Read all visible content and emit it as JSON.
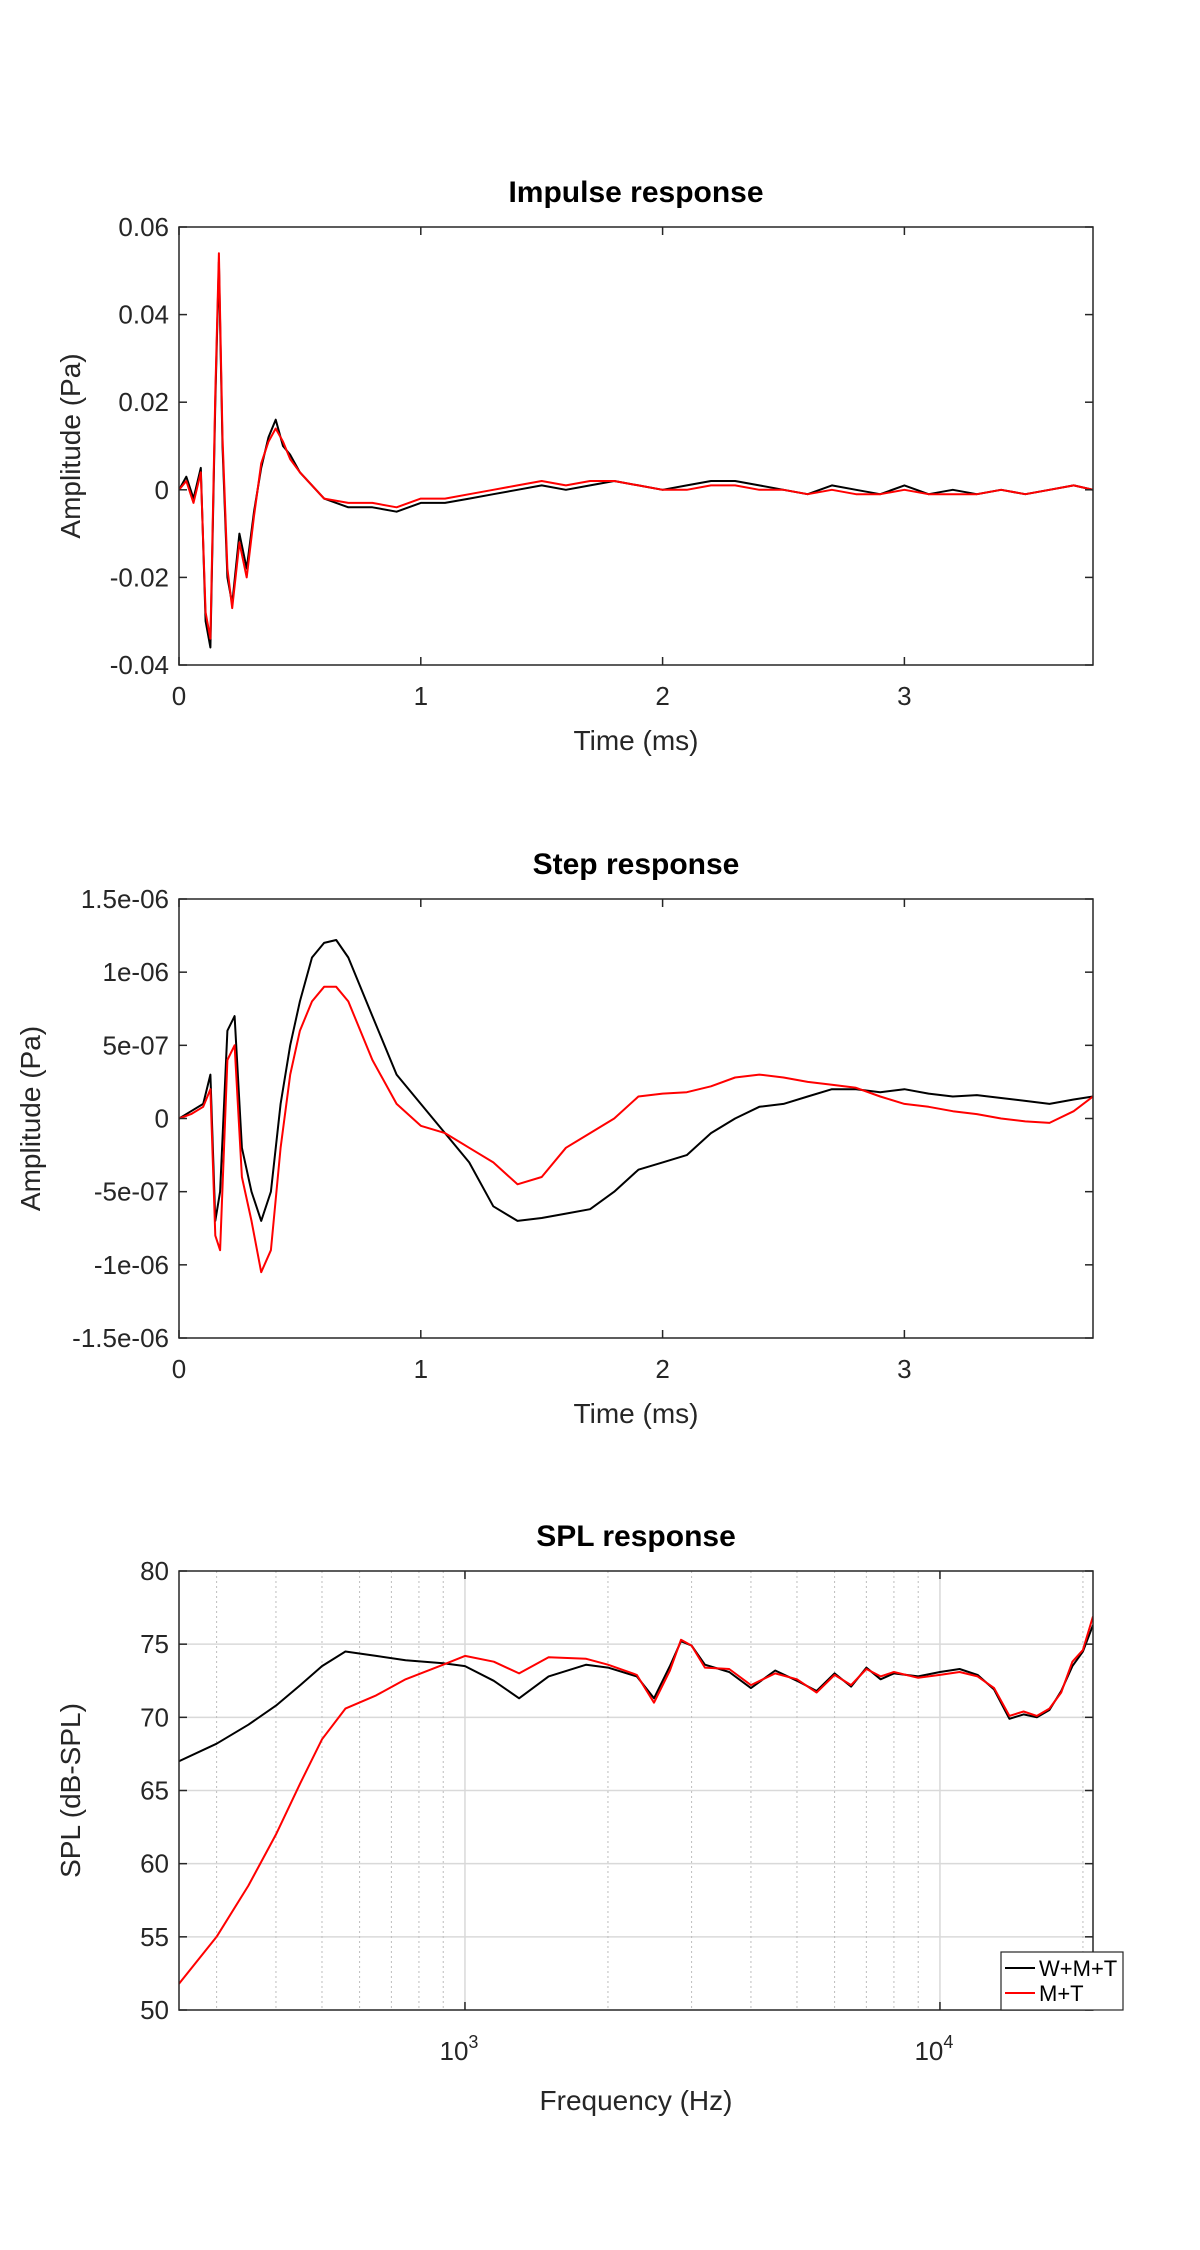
{
  "chart_data": [
    {
      "type": "line",
      "title": "Impulse response",
      "xlabel": "Time (ms)",
      "ylabel": "Amplitude (Pa)",
      "xlim": [
        0,
        3.78
      ],
      "ylim": [
        -0.04,
        0.06
      ],
      "xticks": [
        0,
        1,
        2,
        3
      ],
      "xtick_labels": [
        "0",
        "1",
        "2",
        "3"
      ],
      "yticks": [
        -0.04,
        -0.02,
        0,
        0.02,
        0.04,
        0.06
      ],
      "ytick_labels": [
        "-0.04",
        "-0.02",
        "0",
        "0.02",
        "0.04",
        "0.06"
      ],
      "grid": false,
      "series": [
        {
          "color": "#000000",
          "x": [
            0,
            0.03,
            0.06,
            0.09,
            0.11,
            0.13,
            0.15,
            0.165,
            0.18,
            0.2,
            0.22,
            0.25,
            0.28,
            0.31,
            0.34,
            0.37,
            0.4,
            0.43,
            0.46,
            0.5,
            0.55,
            0.6,
            0.7,
            0.8,
            0.9,
            1.0,
            1.1,
            1.2,
            1.3,
            1.4,
            1.5,
            1.6,
            1.7,
            1.8,
            1.9,
            2.0,
            2.1,
            2.2,
            2.3,
            2.4,
            2.5,
            2.6,
            2.7,
            2.8,
            2.9,
            3.0,
            3.1,
            3.2,
            3.3,
            3.4,
            3.5,
            3.6,
            3.7,
            3.78
          ],
          "y": [
            0,
            0.003,
            -0.002,
            0.005,
            -0.03,
            -0.036,
            0.02,
            0.052,
            0.01,
            -0.02,
            -0.026,
            -0.01,
            -0.018,
            -0.005,
            0.005,
            0.012,
            0.016,
            0.01,
            0.008,
            0.004,
            0.001,
            -0.002,
            -0.004,
            -0.004,
            -0.005,
            -0.003,
            -0.003,
            -0.002,
            -0.001,
            0.0,
            0.001,
            0.0,
            0.001,
            0.002,
            0.001,
            0.0,
            0.001,
            0.002,
            0.002,
            0.001,
            0.0,
            -0.001,
            0.001,
            0.0,
            -0.001,
            0.001,
            -0.001,
            0.0,
            -0.001,
            0.0,
            -0.001,
            0.0,
            0.001,
            0.0
          ]
        },
        {
          "color": "#ff0000",
          "x": [
            0,
            0.03,
            0.06,
            0.09,
            0.11,
            0.13,
            0.15,
            0.165,
            0.18,
            0.2,
            0.22,
            0.25,
            0.28,
            0.31,
            0.34,
            0.37,
            0.4,
            0.43,
            0.46,
            0.5,
            0.55,
            0.6,
            0.7,
            0.8,
            0.9,
            1.0,
            1.1,
            1.2,
            1.3,
            1.4,
            1.5,
            1.6,
            1.7,
            1.8,
            1.9,
            2.0,
            2.1,
            2.2,
            2.3,
            2.4,
            2.5,
            2.6,
            2.7,
            2.8,
            2.9,
            3.0,
            3.1,
            3.2,
            3.3,
            3.4,
            3.5,
            3.6,
            3.7,
            3.78
          ],
          "y": [
            0,
            0.002,
            -0.003,
            0.004,
            -0.028,
            -0.034,
            0.022,
            0.054,
            0.012,
            -0.018,
            -0.027,
            -0.012,
            -0.02,
            -0.006,
            0.006,
            0.011,
            0.014,
            0.011,
            0.007,
            0.004,
            0.001,
            -0.002,
            -0.003,
            -0.003,
            -0.004,
            -0.002,
            -0.002,
            -0.001,
            0.0,
            0.001,
            0.002,
            0.001,
            0.002,
            0.002,
            0.001,
            0.0,
            0.0,
            0.001,
            0.001,
            0.0,
            0.0,
            -0.001,
            0.0,
            -0.001,
            -0.001,
            0.0,
            -0.001,
            -0.001,
            -0.001,
            0.0,
            -0.001,
            0.0,
            0.001,
            0.0
          ]
        }
      ]
    },
    {
      "type": "line",
      "title": "Step response",
      "xlabel": "Time (ms)",
      "ylabel": "Amplitude (Pa)",
      "xlim": [
        0,
        3.78
      ],
      "ylim": [
        -1.5e-06,
        1.5e-06
      ],
      "xticks": [
        0,
        1,
        2,
        3
      ],
      "xtick_labels": [
        "0",
        "1",
        "2",
        "3"
      ],
      "yticks": [
        -1.5e-06,
        -1e-06,
        -5e-07,
        0,
        5e-07,
        1e-06,
        1.5e-06
      ],
      "ytick_labels": [
        "-1.5e-06",
        "-1e-06",
        "-5e-07",
        "0",
        "5e-07",
        "1e-06",
        "1.5e-06"
      ],
      "grid": false,
      "series": [
        {
          "color": "#000000",
          "x": [
            0,
            0.05,
            0.1,
            0.13,
            0.15,
            0.17,
            0.2,
            0.23,
            0.26,
            0.3,
            0.34,
            0.38,
            0.42,
            0.46,
            0.5,
            0.55,
            0.6,
            0.65,
            0.7,
            0.8,
            0.9,
            1.0,
            1.1,
            1.2,
            1.3,
            1.4,
            1.5,
            1.6,
            1.7,
            1.8,
            1.9,
            2.0,
            2.1,
            2.2,
            2.3,
            2.4,
            2.5,
            2.6,
            2.7,
            2.8,
            2.9,
            3.0,
            3.1,
            3.2,
            3.3,
            3.4,
            3.5,
            3.6,
            3.7,
            3.78
          ],
          "y": [
            0,
            5e-08,
            1e-07,
            3e-07,
            -7e-07,
            -5e-07,
            6e-07,
            7e-07,
            -2e-07,
            -5e-07,
            -7e-07,
            -5e-07,
            1e-07,
            5e-07,
            8e-07,
            1.1e-06,
            1.2e-06,
            1.22e-06,
            1.1e-06,
            7e-07,
            3e-07,
            1e-07,
            -1e-07,
            -3e-07,
            -6e-07,
            -7e-07,
            -6.8e-07,
            -6.5e-07,
            -6.2e-07,
            -5e-07,
            -3.5e-07,
            -3e-07,
            -2.5e-07,
            -1e-07,
            0,
            8e-08,
            1e-07,
            1.5e-07,
            2e-07,
            2e-07,
            1.8e-07,
            2e-07,
            1.7e-07,
            1.5e-07,
            1.6e-07,
            1.4e-07,
            1.2e-07,
            1e-07,
            1.3e-07,
            1.5e-07
          ]
        },
        {
          "color": "#ff0000",
          "x": [
            0,
            0.05,
            0.1,
            0.13,
            0.15,
            0.17,
            0.2,
            0.23,
            0.26,
            0.3,
            0.34,
            0.38,
            0.42,
            0.46,
            0.5,
            0.55,
            0.6,
            0.65,
            0.7,
            0.8,
            0.9,
            1.0,
            1.1,
            1.2,
            1.3,
            1.4,
            1.5,
            1.6,
            1.7,
            1.8,
            1.9,
            2.0,
            2.1,
            2.2,
            2.3,
            2.4,
            2.5,
            2.6,
            2.7,
            2.8,
            2.9,
            3.0,
            3.1,
            3.2,
            3.3,
            3.4,
            3.5,
            3.6,
            3.7,
            3.78
          ],
          "y": [
            0,
            3e-08,
            8e-08,
            2e-07,
            -8e-07,
            -9e-07,
            4e-07,
            5e-07,
            -4e-07,
            -7e-07,
            -1.05e-06,
            -9e-07,
            -2e-07,
            3e-07,
            6e-07,
            8e-07,
            9e-07,
            9e-07,
            8e-07,
            4e-07,
            1e-07,
            -5e-08,
            -1e-07,
            -2e-07,
            -3e-07,
            -4.5e-07,
            -4e-07,
            -2e-07,
            -1e-07,
            0,
            1.5e-07,
            1.7e-07,
            1.8e-07,
            2.2e-07,
            2.8e-07,
            3e-07,
            2.8e-07,
            2.5e-07,
            2.3e-07,
            2.1e-07,
            1.5e-07,
            1e-07,
            8e-08,
            5e-08,
            3e-08,
            0,
            -2e-08,
            -3e-08,
            5e-08,
            1.5e-07
          ]
        }
      ]
    },
    {
      "type": "line",
      "title": "SPL response",
      "xlabel": "Frequency (Hz)",
      "ylabel": "SPL (dB-SPL)",
      "xscale": "log",
      "xlim": [
        250,
        21000
      ],
      "ylim": [
        50,
        80
      ],
      "xticks": [
        1000,
        10000
      ],
      "xtick_labels": [
        {
          "base": "10",
          "exp": "3"
        },
        {
          "base": "10",
          "exp": "4"
        }
      ],
      "yticks": [
        50,
        55,
        60,
        65,
        70,
        75,
        80
      ],
      "ytick_labels": [
        "50",
        "55",
        "60",
        "65",
        "70",
        "75",
        "80"
      ],
      "grid": true,
      "legend_position": "bottom-right",
      "series": [
        {
          "name": "W+M+T",
          "color": "#000000",
          "x": [
            250,
            300,
            350,
            400,
            450,
            500,
            560,
            650,
            750,
            900,
            1000,
            1150,
            1300,
            1500,
            1800,
            2000,
            2300,
            2500,
            2700,
            2850,
            3000,
            3200,
            3600,
            4000,
            4500,
            5000,
            5500,
            6000,
            6500,
            7000,
            7500,
            8000,
            9000,
            10000,
            11000,
            12000,
            13000,
            14000,
            15000,
            16000,
            17000,
            18000,
            19000,
            20000,
            21000
          ],
          "y": [
            67,
            68.2,
            69.5,
            70.8,
            72.2,
            73.5,
            74.5,
            74.2,
            73.9,
            73.7,
            73.5,
            72.5,
            71.3,
            72.8,
            73.6,
            73.4,
            72.8,
            71.3,
            73.5,
            75.2,
            74.9,
            73.6,
            73.1,
            72.0,
            73.2,
            72.5,
            71.8,
            73.0,
            72.1,
            73.4,
            72.6,
            73.0,
            72.8,
            73.1,
            73.3,
            72.9,
            71.9,
            69.9,
            70.2,
            70.0,
            70.5,
            71.8,
            73.5,
            74.5,
            76.3
          ]
        },
        {
          "name": "M+T",
          "color": "#ff0000",
          "x": [
            250,
            300,
            350,
            400,
            450,
            500,
            560,
            650,
            750,
            900,
            1000,
            1150,
            1300,
            1500,
            1800,
            2000,
            2300,
            2500,
            2700,
            2850,
            3000,
            3200,
            3600,
            4000,
            4500,
            5000,
            5500,
            6000,
            6500,
            7000,
            7500,
            8000,
            9000,
            10000,
            11000,
            12000,
            13000,
            14000,
            15000,
            16000,
            17000,
            18000,
            19000,
            20000,
            21000
          ],
          "y": [
            51.8,
            55.0,
            58.5,
            62.0,
            65.5,
            68.5,
            70.6,
            71.5,
            72.6,
            73.6,
            74.2,
            73.8,
            73.0,
            74.1,
            74.0,
            73.6,
            72.9,
            71.0,
            73.2,
            75.3,
            74.9,
            73.4,
            73.3,
            72.2,
            73.0,
            72.6,
            71.7,
            72.9,
            72.2,
            73.3,
            72.8,
            73.1,
            72.7,
            72.9,
            73.1,
            72.8,
            72.0,
            70.1,
            70.4,
            70.1,
            70.6,
            71.7,
            73.8,
            74.6,
            76.9
          ]
        }
      ]
    }
  ]
}
